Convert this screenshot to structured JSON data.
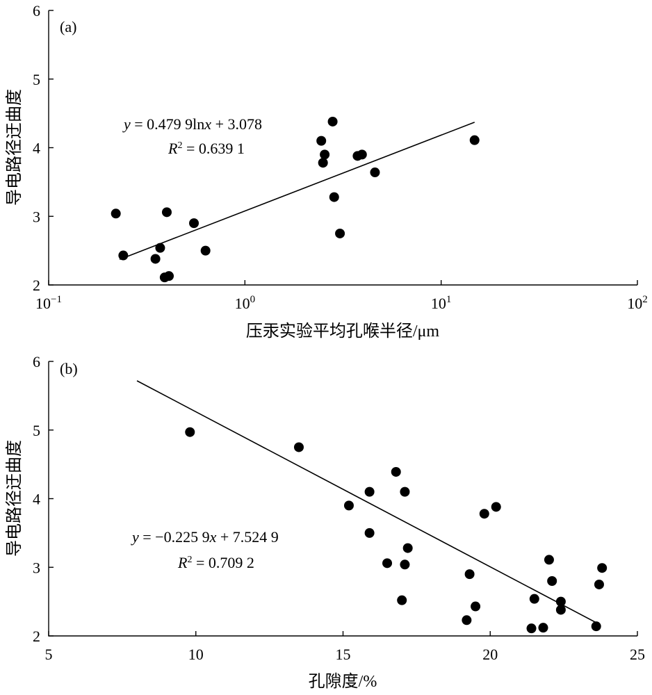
{
  "chart_data": [
    {
      "type": "scatter",
      "panel_label": "(a)",
      "xlabel": "压汞实验平均孔喉半径/μm",
      "ylabel": "导电路径迂曲度",
      "xscale": "log",
      "xlim": [
        0.1,
        100
      ],
      "ylim": [
        2,
        6
      ],
      "x_ticks": [
        {
          "base": "10",
          "exp": "−1"
        },
        {
          "base": "10",
          "exp": "0"
        },
        {
          "base": "10",
          "exp": "1"
        },
        {
          "base": "10",
          "exp": "2"
        }
      ],
      "y_ticks": [
        "2",
        "3",
        "4",
        "5",
        "6"
      ],
      "points": [
        {
          "x": 0.22,
          "y": 3.04
        },
        {
          "x": 0.24,
          "y": 2.43
        },
        {
          "x": 0.35,
          "y": 2.38
        },
        {
          "x": 0.37,
          "y": 2.54
        },
        {
          "x": 0.39,
          "y": 2.11
        },
        {
          "x": 0.41,
          "y": 2.13
        },
        {
          "x": 0.4,
          "y": 3.06
        },
        {
          "x": 0.55,
          "y": 2.9
        },
        {
          "x": 0.63,
          "y": 2.5
        },
        {
          "x": 2.45,
          "y": 4.1
        },
        {
          "x": 2.55,
          "y": 3.9
        },
        {
          "x": 2.5,
          "y": 3.78
        },
        {
          "x": 2.8,
          "y": 4.38
        },
        {
          "x": 2.85,
          "y": 3.28
        },
        {
          "x": 3.05,
          "y": 2.75
        },
        {
          "x": 3.75,
          "y": 3.88
        },
        {
          "x": 3.95,
          "y": 3.9
        },
        {
          "x": 4.6,
          "y": 3.64
        },
        {
          "x": 14.8,
          "y": 4.11
        }
      ],
      "fit_line": {
        "x_range": [
          0.23,
          14.8
        ]
      },
      "equation": {
        "line1_parts": [
          {
            "t": "y",
            "i": true
          },
          {
            "t": " = 0.479 9ln",
            "i": false
          },
          {
            "t": "x",
            "i": true
          },
          {
            "t": " + 3.078",
            "i": false
          }
        ],
        "line2_parts": [
          {
            "t": "R",
            "i": true
          },
          {
            "t": "2",
            "sup": true
          },
          {
            "t": " = 0.639 1",
            "i": false
          }
        ]
      }
    },
    {
      "type": "scatter",
      "panel_label": "(b)",
      "xlabel": "孔隙度/%",
      "ylabel": "导电路径迂曲度",
      "xlim": [
        5,
        25
      ],
      "ylim": [
        2,
        6
      ],
      "x_ticks": [
        "5",
        "10",
        "15",
        "20",
        "25"
      ],
      "y_ticks": [
        "2",
        "3",
        "4",
        "5",
        "6"
      ],
      "points": [
        {
          "x": 9.8,
          "y": 4.97
        },
        {
          "x": 13.5,
          "y": 4.75
        },
        {
          "x": 15.2,
          "y": 3.9
        },
        {
          "x": 15.9,
          "y": 4.1
        },
        {
          "x": 15.9,
          "y": 3.5
        },
        {
          "x": 16.5,
          "y": 3.06
        },
        {
          "x": 16.8,
          "y": 4.39
        },
        {
          "x": 17.0,
          "y": 2.52
        },
        {
          "x": 17.1,
          "y": 4.1
        },
        {
          "x": 17.1,
          "y": 3.04
        },
        {
          "x": 17.2,
          "y": 3.28
        },
        {
          "x": 19.2,
          "y": 2.23
        },
        {
          "x": 19.3,
          "y": 2.9
        },
        {
          "x": 19.5,
          "y": 2.43
        },
        {
          "x": 19.8,
          "y": 3.78
        },
        {
          "x": 20.2,
          "y": 3.88
        },
        {
          "x": 21.4,
          "y": 2.11
        },
        {
          "x": 21.5,
          "y": 2.54
        },
        {
          "x": 21.8,
          "y": 2.12
        },
        {
          "x": 22.0,
          "y": 3.11
        },
        {
          "x": 22.1,
          "y": 2.8
        },
        {
          "x": 22.4,
          "y": 2.5
        },
        {
          "x": 22.4,
          "y": 2.38
        },
        {
          "x": 23.6,
          "y": 2.14
        },
        {
          "x": 23.7,
          "y": 2.75
        },
        {
          "x": 23.8,
          "y": 2.99
        }
      ],
      "fit_line": {
        "x_range": [
          8.0,
          23.65
        ]
      },
      "equation": {
        "line1_parts": [
          {
            "t": "y",
            "i": true
          },
          {
            "t": " = −0.225 9",
            "i": false
          },
          {
            "t": "x",
            "i": true
          },
          {
            "t": " + 7.524 9",
            "i": false
          }
        ],
        "line2_parts": [
          {
            "t": "R",
            "i": true
          },
          {
            "t": "2",
            "sup": true
          },
          {
            "t": " = 0.709 2",
            "i": false
          }
        ]
      }
    }
  ]
}
